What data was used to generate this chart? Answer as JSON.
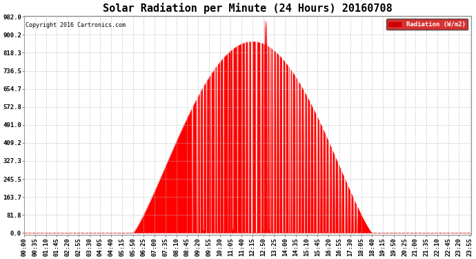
{
  "title": "Solar Radiation per Minute (24 Hours) 20160708",
  "copyright": "Copyright 2016 Cartronics.com",
  "legend_text": "Radiation (W/m2)",
  "yticks": [
    0.0,
    81.8,
    163.7,
    245.5,
    327.3,
    409.2,
    491.0,
    572.8,
    654.7,
    736.5,
    818.3,
    900.2,
    982.0
  ],
  "ymax": 982.0,
  "fill_color": "#FF0000",
  "background_color": "#FFFFFF",
  "grid_color": "#BBBBBB",
  "legend_bg": "#CC0000",
  "sunrise": 350,
  "sunset": 1120,
  "peak_time": 775,
  "peak_value": 870,
  "title_fontsize": 11,
  "axis_fontsize": 6.5,
  "copyright_fontsize": 6.0
}
